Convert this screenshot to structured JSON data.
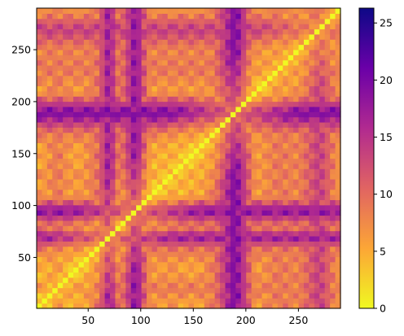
{
  "chart_data": {
    "type": "heatmap",
    "title": "",
    "xlabel": "",
    "ylabel": "",
    "xlim": [
      1,
      290
    ],
    "ylim": [
      1,
      290
    ],
    "x_ticks": [
      50,
      100,
      150,
      200,
      250
    ],
    "y_ticks": [
      50,
      100,
      150,
      200,
      250
    ],
    "x_tick_labels": [
      "50",
      "100",
      "150",
      "200",
      "250"
    ],
    "y_tick_labels": [
      "50",
      "100",
      "150",
      "200",
      "250"
    ],
    "y_origin": "bottom",
    "symmetric": true,
    "diagonal_value": 0,
    "value_range": [
      0,
      26.3
    ],
    "colormap": "plasma_r",
    "colormap_stops": [
      "#f0f921",
      "#fca636",
      "#e16462",
      "#b12a90",
      "#6a00a8",
      "#0d0887"
    ],
    "profile_grid": [
      1,
      20,
      40,
      60,
      70,
      80,
      95,
      110,
      130,
      150,
      170,
      190,
      210,
      230,
      250,
      270,
      290
    ],
    "profile_values": [
      4,
      9,
      5,
      10,
      18,
      8,
      19,
      6,
      7,
      5,
      9,
      20,
      6,
      9,
      8,
      14,
      6
    ],
    "colorbar": {
      "ticks": [
        0,
        5,
        10,
        15,
        20,
        25
      ],
      "tick_labels": [
        "0",
        "5",
        "10",
        "15",
        "20",
        "25"
      ],
      "max": 26.3
    }
  }
}
